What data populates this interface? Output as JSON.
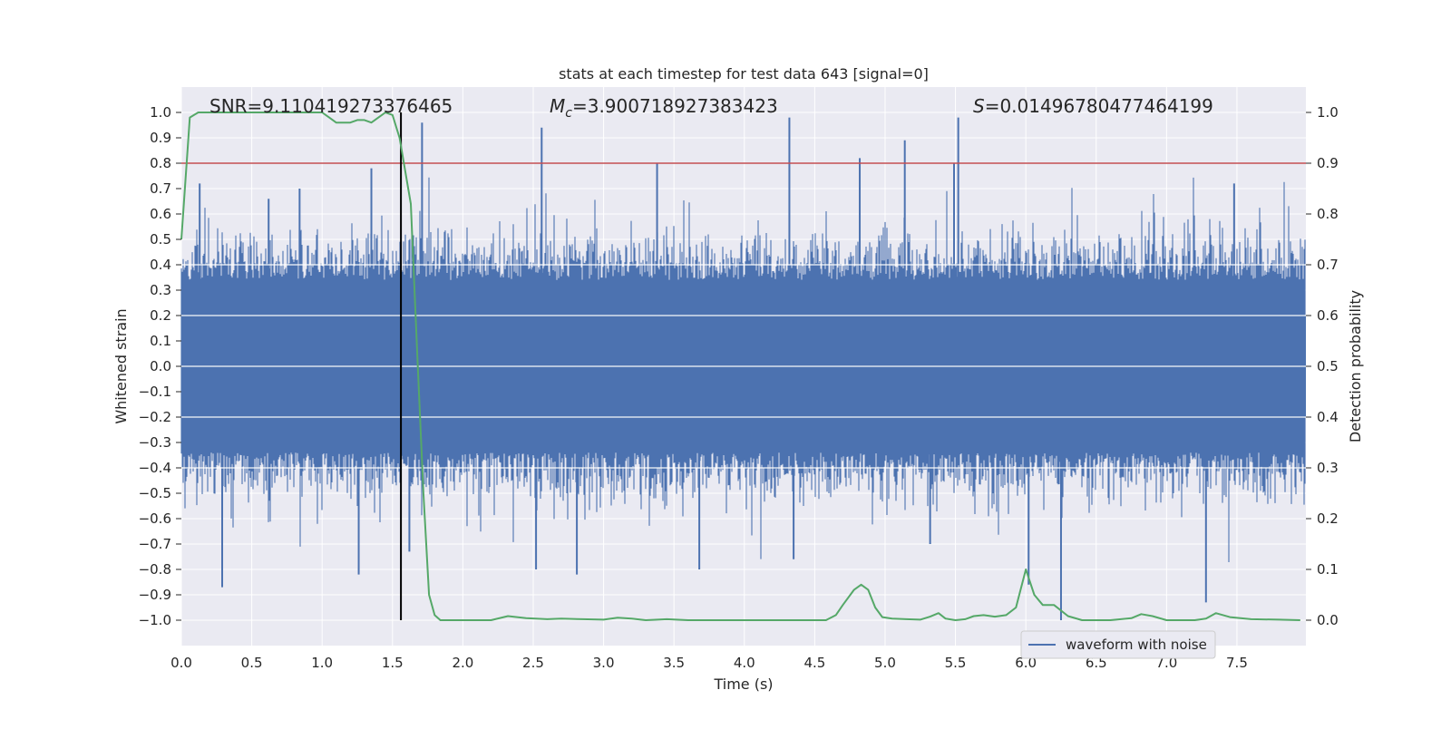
{
  "chart_data": {
    "type": "line",
    "title": "stats at each timestep for test data 643 [signal=0]",
    "xlabel": "Time (s)",
    "ylabel_left": "Whitened strain",
    "ylabel_right": "Detection probability",
    "xlim": [
      0.0,
      7.99
    ],
    "ylim_left": [
      -1.1,
      1.1
    ],
    "ylim_right": [
      -0.05,
      1.05
    ],
    "x_ticks": [
      "0.0",
      "0.5",
      "1.0",
      "1.5",
      "2.0",
      "2.5",
      "3.0",
      "3.5",
      "4.0",
      "4.5",
      "5.0",
      "5.5",
      "6.0",
      "6.5",
      "7.0",
      "7.5"
    ],
    "x_tick_values": [
      0.0,
      0.5,
      1.0,
      1.5,
      2.0,
      2.5,
      3.0,
      3.5,
      4.0,
      4.5,
      5.0,
      5.5,
      6.0,
      6.5,
      7.0,
      7.5
    ],
    "y_left_ticks": [
      "1.0",
      "0.9",
      "0.8",
      "0.7",
      "0.6",
      "0.5",
      "0.4",
      "0.3",
      "0.2",
      "0.1",
      "0.0",
      "−0.1",
      "−0.2",
      "−0.3",
      "−0.4",
      "−0.5",
      "−0.6",
      "−0.7",
      "−0.8",
      "−0.9",
      "−1.0"
    ],
    "y_left_tick_values": [
      1.0,
      0.9,
      0.8,
      0.7,
      0.6,
      0.5,
      0.4,
      0.3,
      0.2,
      0.1,
      0.0,
      -0.1,
      -0.2,
      -0.3,
      -0.4,
      -0.5,
      -0.6,
      -0.7,
      -0.8,
      -0.9,
      -1.0
    ],
    "y_right_ticks": [
      "1.0",
      "0.9",
      "0.8",
      "0.7",
      "0.6",
      "0.5",
      "0.4",
      "0.3",
      "0.2",
      "0.1",
      "0.0"
    ],
    "y_right_tick_values": [
      1.0,
      0.9,
      0.8,
      0.7,
      0.6,
      0.5,
      0.4,
      0.3,
      0.2,
      0.1,
      0.0
    ],
    "annotations": {
      "snr_label": "SNR=9.110419273376465",
      "mc_symbol": "M",
      "mc_sub": "c",
      "mc_value": "=3.900718927383423",
      "s_symbol": "S",
      "s_value": "=0.01496780477464199"
    },
    "threshold_right": 0.9,
    "marker_time": 1.56,
    "waveform_series": {
      "name": "waveform with noise",
      "description": "dense noise, typical band about ±0.4, spikes up to about ±0.97",
      "spikes_up": [
        [
          0.13,
          0.72
        ],
        [
          0.62,
          0.66
        ],
        [
          0.84,
          0.7
        ],
        [
          1.35,
          0.78
        ],
        [
          1.71,
          0.96
        ],
        [
          2.56,
          0.94
        ],
        [
          3.38,
          0.8
        ],
        [
          4.32,
          0.98
        ],
        [
          4.82,
          0.82
        ],
        [
          5.14,
          0.89
        ],
        [
          5.49,
          0.8
        ],
        [
          5.52,
          0.98
        ],
        [
          7.48,
          0.72
        ]
      ],
      "spikes_down": [
        [
          0.29,
          -0.87
        ],
        [
          1.26,
          -0.82
        ],
        [
          1.62,
          -0.73
        ],
        [
          2.52,
          -0.8
        ],
        [
          2.81,
          -0.82
        ],
        [
          3.68,
          -0.8
        ],
        [
          4.35,
          -0.76
        ],
        [
          5.32,
          -0.7
        ],
        [
          6.02,
          -0.86
        ],
        [
          6.25,
          -1.0
        ],
        [
          7.28,
          -0.93
        ]
      ]
    },
    "probability_series": {
      "name": "detection probability",
      "x": [
        0.0,
        0.06,
        0.12,
        0.2,
        0.3,
        0.5,
        0.7,
        0.9,
        1.0,
        1.05,
        1.1,
        1.2,
        1.25,
        1.3,
        1.35,
        1.4,
        1.45,
        1.5,
        1.55,
        1.63,
        1.68,
        1.72,
        1.76,
        1.8,
        1.84,
        1.9,
        2.0,
        2.2,
        2.32,
        2.45,
        2.6,
        2.7,
        2.85,
        3.0,
        3.1,
        3.2,
        3.3,
        3.45,
        3.6,
        3.8,
        4.0,
        4.2,
        4.4,
        4.58,
        4.65,
        4.7,
        4.78,
        4.83,
        4.88,
        4.93,
        4.98,
        5.05,
        5.15,
        5.25,
        5.32,
        5.38,
        5.43,
        5.5,
        5.57,
        5.63,
        5.7,
        5.78,
        5.86,
        5.93,
        6.0,
        6.06,
        6.12,
        6.2,
        6.3,
        6.4,
        6.6,
        6.75,
        6.82,
        6.9,
        7.0,
        7.2,
        7.28,
        7.35,
        7.45,
        7.6,
        7.8,
        7.95
      ],
      "y": [
        0.75,
        0.99,
        1.0,
        1.0,
        1.0,
        1.0,
        1.0,
        1.0,
        1.0,
        0.99,
        0.98,
        0.98,
        0.985,
        0.985,
        0.98,
        0.99,
        1.0,
        0.995,
        0.95,
        0.82,
        0.5,
        0.25,
        0.05,
        0.01,
        0.0,
        0.0,
        0.0,
        0.0,
        0.008,
        0.004,
        0.002,
        0.003,
        0.002,
        0.001,
        0.005,
        0.003,
        0.0,
        0.002,
        0.0,
        0.0,
        0.0,
        0.0,
        0.0,
        0.0,
        0.01,
        0.03,
        0.06,
        0.07,
        0.06,
        0.025,
        0.006,
        0.003,
        0.002,
        0.001,
        0.007,
        0.014,
        0.003,
        0.0,
        0.002,
        0.008,
        0.01,
        0.007,
        0.01,
        0.025,
        0.1,
        0.05,
        0.03,
        0.03,
        0.008,
        0.0,
        0.0,
        0.004,
        0.012,
        0.008,
        0.0,
        0.0,
        0.003,
        0.014,
        0.006,
        0.002,
        0.001,
        0.0
      ]
    },
    "legend": {
      "label": "waveform with noise",
      "location": "lower center-right"
    },
    "colors": {
      "waveform": "#4c72b0",
      "probability": "#55a868",
      "threshold": "#c44e52",
      "marker": "#000000",
      "panel": "#eaeaf2",
      "grid": "#ffffff"
    },
    "grid": true
  }
}
